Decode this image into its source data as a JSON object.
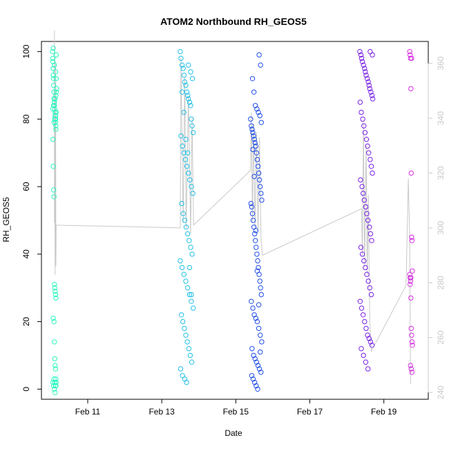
{
  "chart_data": {
    "type": "scatter",
    "title": "ATOM2 Northbound RH_GEOS5",
    "xlabel": "Date",
    "ylabel": "RH_GEOS5",
    "x_ticks": [
      "Feb 11",
      "Feb 13",
      "Feb 15",
      "Feb 17",
      "Feb 19"
    ],
    "x_tick_values": [
      11,
      13,
      15,
      17,
      19
    ],
    "xlim": [
      9.75,
      20.2
    ],
    "y_ticks": [
      0,
      20,
      40,
      60,
      80,
      100
    ],
    "ylim": [
      -3,
      103
    ],
    "y2_ticks": [
      240,
      260,
      280,
      300,
      320,
      340,
      360
    ],
    "y2lim": [
      237.5,
      368
    ],
    "grid": false,
    "legend": "none",
    "colors": {
      "group_1": "#2cf6c0",
      "group_2": "#22c0e6",
      "group_3": "#1f4de8",
      "group_4": "#7a1fe6",
      "group_5": "#d62ee0",
      "secondary_line": "#c8c8c8"
    },
    "series": [
      {
        "color": "#2cf6c0",
        "x": [
          10.05,
          10.06,
          10.06,
          10.07,
          10.07,
          10.08,
          10.08,
          10.09,
          10.09,
          10.1,
          10.1,
          10.11,
          10.12,
          10.12,
          10.13,
          10.13,
          10.14,
          10.14,
          10.15,
          10.15,
          10.06,
          10.07,
          10.08,
          10.09,
          10.1,
          10.11,
          10.12,
          10.13,
          10.14,
          10.07,
          10.09,
          10.1,
          10.11,
          10.12,
          10.13,
          10.14,
          10.15,
          10.08,
          10.1,
          10.12,
          10.14,
          10.06,
          10.09,
          10.11,
          10.13,
          10.15,
          10.07,
          10.1,
          10.13,
          10.16,
          10.14,
          10.12,
          10.1,
          10.08,
          10.06,
          10.15,
          10.13,
          10.11,
          10.09
        ],
        "y": [
          100,
          98,
          97,
          95,
          93,
          92,
          90,
          88,
          86,
          85,
          84,
          83,
          82,
          81,
          80,
          79,
          78,
          77,
          88,
          92,
          74,
          66,
          59,
          57,
          31,
          30,
          29,
          28,
          27,
          21,
          20,
          14,
          9,
          7,
          6,
          3,
          2,
          1,
          0,
          -1,
          1,
          2,
          3,
          2,
          1,
          99,
          101,
          96,
          94,
          89,
          87,
          86,
          85,
          84,
          83,
          82,
          81,
          80,
          79
        ]
      },
      {
        "color": "#22c0e6",
        "x": [
          13.5,
          13.52,
          13.55,
          13.58,
          13.6,
          13.62,
          13.65,
          13.68,
          13.7,
          13.72,
          13.75,
          13.78,
          13.8,
          13.82,
          13.85,
          13.52,
          13.56,
          13.6,
          13.64,
          13.68,
          13.72,
          13.76,
          13.8,
          13.84,
          13.54,
          13.58,
          13.62,
          13.66,
          13.7,
          13.74,
          13.78,
          13.82,
          13.5,
          13.55,
          13.6,
          13.65,
          13.7,
          13.75,
          13.8,
          13.85,
          13.53,
          13.57,
          13.61,
          13.65,
          13.69,
          13.73,
          13.77,
          13.81,
          13.51,
          13.56,
          13.62,
          13.67,
          13.72,
          13.78,
          13.83,
          13.55,
          13.6,
          13.65,
          13.7,
          13.75,
          13.8
        ],
        "y": [
          100,
          98,
          96,
          95,
          93,
          91,
          90,
          88,
          87,
          86,
          85,
          84,
          80,
          78,
          76,
          75,
          72,
          70,
          68,
          66,
          64,
          62,
          60,
          58,
          55,
          52,
          50,
          48,
          46,
          44,
          42,
          40,
          38,
          36,
          34,
          32,
          30,
          28,
          26,
          24,
          22,
          20,
          18,
          16,
          14,
          12,
          10,
          8,
          6,
          4,
          3,
          2,
          96,
          94,
          92,
          88,
          82,
          74,
          70,
          36,
          28
        ]
      },
      {
        "color": "#1f4de8",
        "x": [
          15.4,
          15.42,
          15.44,
          15.46,
          15.48,
          15.5,
          15.52,
          15.54,
          15.56,
          15.58,
          15.6,
          15.62,
          15.64,
          15.66,
          15.68,
          15.7,
          15.41,
          15.43,
          15.45,
          15.47,
          15.49,
          15.51,
          15.53,
          15.55,
          15.57,
          15.59,
          15.61,
          15.63,
          15.65,
          15.67,
          15.69,
          15.42,
          15.46,
          15.5,
          15.54,
          15.58,
          15.62,
          15.66,
          15.7,
          15.44,
          15.48,
          15.52,
          15.56,
          15.6,
          15.64,
          15.68,
          15.43,
          15.47,
          15.51,
          15.55,
          15.59,
          15.63,
          15.67,
          15.45,
          15.49,
          15.53,
          15.57,
          15.61,
          15.65,
          15.69,
          15.46,
          15.5,
          15.54,
          15.58,
          15.62,
          15.66
        ],
        "y": [
          80,
          78,
          77,
          76,
          75,
          74,
          73,
          72,
          70,
          68,
          66,
          64,
          62,
          60,
          58,
          56,
          55,
          54,
          52,
          50,
          48,
          46,
          44,
          42,
          40,
          38,
          36,
          34,
          32,
          30,
          28,
          26,
          24,
          22,
          21,
          20,
          18,
          16,
          14,
          12,
          10,
          9,
          8,
          7,
          6,
          5,
          4,
          3,
          2,
          1,
          0,
          99,
          96,
          92,
          88,
          84,
          83,
          82,
          81,
          79,
          71,
          63,
          47,
          35,
          25,
          11
        ]
      },
      {
        "color": "#7a1fe6",
        "x": [
          18.35,
          18.38,
          18.4,
          18.42,
          18.45,
          18.48,
          18.5,
          18.52,
          18.55,
          18.58,
          18.6,
          18.62,
          18.65,
          18.68,
          18.7,
          18.36,
          18.39,
          18.43,
          18.46,
          18.49,
          18.53,
          18.56,
          18.59,
          18.63,
          18.66,
          18.69,
          18.37,
          18.41,
          18.44,
          18.47,
          18.51,
          18.54,
          18.57,
          18.61,
          18.64,
          18.67,
          18.38,
          18.42,
          18.46,
          18.5,
          18.54,
          18.58,
          18.62,
          18.66,
          18.36,
          18.4,
          18.44,
          18.48,
          18.52,
          18.56,
          18.6,
          18.64,
          18.68,
          18.39,
          18.45,
          18.51,
          18.57,
          18.63,
          18.69
        ],
        "y": [
          100,
          99,
          98,
          97,
          96,
          95,
          94,
          93,
          92,
          91,
          90,
          89,
          88,
          87,
          86,
          85,
          82,
          80,
          78,
          76,
          74,
          72,
          70,
          68,
          66,
          64,
          62,
          60,
          58,
          56,
          54,
          52,
          50,
          48,
          46,
          44,
          42,
          40,
          38,
          36,
          34,
          32,
          30,
          28,
          26,
          24,
          22,
          20,
          18,
          16,
          15,
          14,
          13,
          12,
          10,
          8,
          6,
          100,
          99
        ]
      },
      {
        "color": "#d62ee0",
        "x": [
          19.7,
          19.71,
          19.72,
          19.73,
          19.74,
          19.75,
          19.76,
          19.77,
          19.7,
          19.71,
          19.72,
          19.73,
          19.74,
          19.75,
          19.76,
          19.77,
          19.72,
          19.74,
          19.76,
          19.71,
          19.73,
          19.75
        ],
        "y": [
          100,
          99,
          98,
          89,
          64,
          45,
          44,
          35,
          34,
          33,
          32,
          27,
          18,
          16,
          14,
          13,
          7,
          6,
          5,
          31,
          33,
          98
        ]
      }
    ],
    "secondary_line": [
      [
        10.1,
        302
      ],
      [
        10.1,
        372
      ],
      [
        10.12,
        283
      ],
      [
        10.13,
        360
      ],
      [
        10.14,
        286
      ],
      [
        10.15,
        301
      ],
      [
        13.5,
        300
      ],
      [
        13.52,
        362
      ],
      [
        13.58,
        302
      ],
      [
        13.62,
        355
      ],
      [
        13.66,
        300
      ],
      [
        13.72,
        348
      ],
      [
        13.78,
        298
      ],
      [
        13.82,
        340
      ],
      [
        13.86,
        301
      ],
      [
        15.4,
        321
      ],
      [
        15.42,
        342
      ],
      [
        15.45,
        302
      ],
      [
        15.48,
        338
      ],
      [
        15.52,
        300
      ],
      [
        15.56,
        335
      ],
      [
        15.6,
        298
      ],
      [
        15.64,
        333
      ],
      [
        15.68,
        296
      ],
      [
        15.72,
        290
      ],
      [
        18.4,
        307
      ],
      [
        18.42,
        290
      ],
      [
        18.45,
        338
      ],
      [
        18.48,
        286
      ],
      [
        18.52,
        330
      ],
      [
        18.55,
        283
      ],
      [
        18.58,
        312
      ],
      [
        18.62,
        265
      ],
      [
        18.66,
        255
      ],
      [
        19.6,
        279
      ],
      [
        19.66,
        318
      ],
      [
        19.7,
        295
      ],
      [
        19.72,
        243
      ]
    ]
  }
}
